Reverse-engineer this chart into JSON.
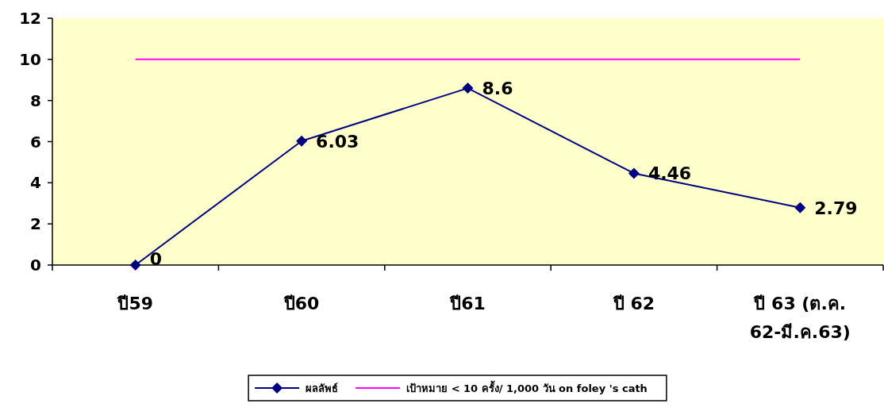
{
  "chart_data": {
    "type": "line",
    "categories": [
      "ปี59",
      "ปี60",
      "ปี61",
      "ปี 62",
      "ปี 63 (ต.ค. 62-มี.ค.63)"
    ],
    "ylim": [
      0,
      12
    ],
    "yticks": [
      0,
      2,
      4,
      6,
      8,
      10,
      12
    ],
    "legend": "bottom",
    "grid": false,
    "series": [
      {
        "name": "ผลลัพธ์",
        "color": "#000080",
        "marker": "diamond",
        "values": [
          0,
          6.03,
          8.6,
          4.46,
          2.79
        ],
        "value_labels": [
          "0",
          "6.03",
          "8.6",
          "4.46",
          "2.79"
        ]
      },
      {
        "name": "เป้าหมาย < 10 ครั้ง/ 1,000 วัน on foley 's cath",
        "color": "#ff00ff",
        "marker": "none",
        "values": [
          10,
          10,
          10,
          10,
          10
        ]
      }
    ]
  }
}
